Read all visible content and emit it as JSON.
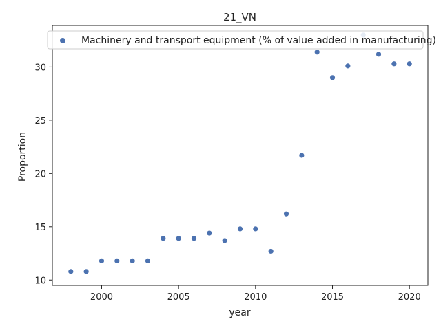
{
  "chart_data": {
    "type": "scatter",
    "title": "21_VN",
    "xlabel": "year",
    "ylabel": "Proportion",
    "xlim": [
      1996.8,
      2021.2
    ],
    "ylim": [
      9.5,
      33.9
    ],
    "xticks": [
      2000,
      2005,
      2010,
      2015,
      2020
    ],
    "yticks": [
      10,
      15,
      20,
      25,
      30
    ],
    "grid": false,
    "legend_position": "top",
    "series": [
      {
        "name": "Machinery and transport equipment (% of value added in manufacturing)",
        "color": "#4c72b0",
        "x": [
          1998,
          1999,
          2000,
          2001,
          2002,
          2003,
          2004,
          2005,
          2006,
          2007,
          2008,
          2009,
          2010,
          2011,
          2012,
          2013,
          2014,
          2015,
          2016,
          2017,
          2018,
          2019,
          2020
        ],
        "y": [
          10.8,
          10.8,
          11.8,
          11.8,
          11.8,
          11.8,
          13.9,
          13.9,
          13.9,
          14.4,
          13.7,
          14.8,
          14.8,
          12.7,
          16.2,
          21.7,
          31.4,
          29.0,
          30.1,
          33.0,
          31.2,
          30.3,
          30.3
        ]
      }
    ]
  }
}
